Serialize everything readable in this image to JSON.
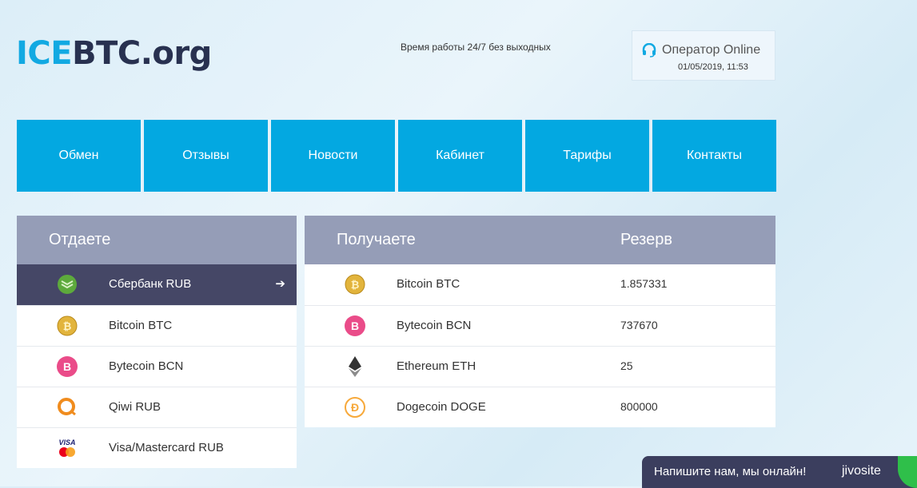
{
  "logo": {
    "part1": "ICE",
    "part2": "BTC.org"
  },
  "header": {
    "hours": "Время работы 24/7 без выходных",
    "operator": "Оператор Online",
    "datetime": "01/05/2019, 11:53"
  },
  "nav": [
    "Обмен",
    "Отзывы",
    "Новости",
    "Кабинет",
    "Тарифы",
    "Контакты"
  ],
  "give": {
    "title": "Отдаете",
    "items": [
      {
        "label": "Сбербанк RUB",
        "icon": "sberbank-icon",
        "selected": true
      },
      {
        "label": "Bitcoin BTC",
        "icon": "bitcoin-icon"
      },
      {
        "label": "Bytecoin BCN",
        "icon": "bytecoin-icon"
      },
      {
        "label": "Qiwi RUB",
        "icon": "qiwi-icon"
      },
      {
        "label": "Visa/Mastercard RUB",
        "icon": "visa-mastercard-icon"
      }
    ]
  },
  "receive": {
    "title": "Получаете",
    "reserve_title": "Резерв",
    "items": [
      {
        "label": "Bitcoin BTC",
        "icon": "bitcoin-icon",
        "reserve": "1.857331"
      },
      {
        "label": "Bytecoin BCN",
        "icon": "bytecoin-icon",
        "reserve": "737670"
      },
      {
        "label": "Ethereum ETH",
        "icon": "ethereum-icon",
        "reserve": "25"
      },
      {
        "label": "Dogecoin DOGE",
        "icon": "dogecoin-icon",
        "reserve": "800000"
      }
    ]
  },
  "chat": {
    "text": "Напишите нам, мы онлайн!",
    "brand": "jivosite"
  },
  "colors": {
    "accent": "#03a8e1",
    "header": "#959db7",
    "selected": "#454766"
  }
}
